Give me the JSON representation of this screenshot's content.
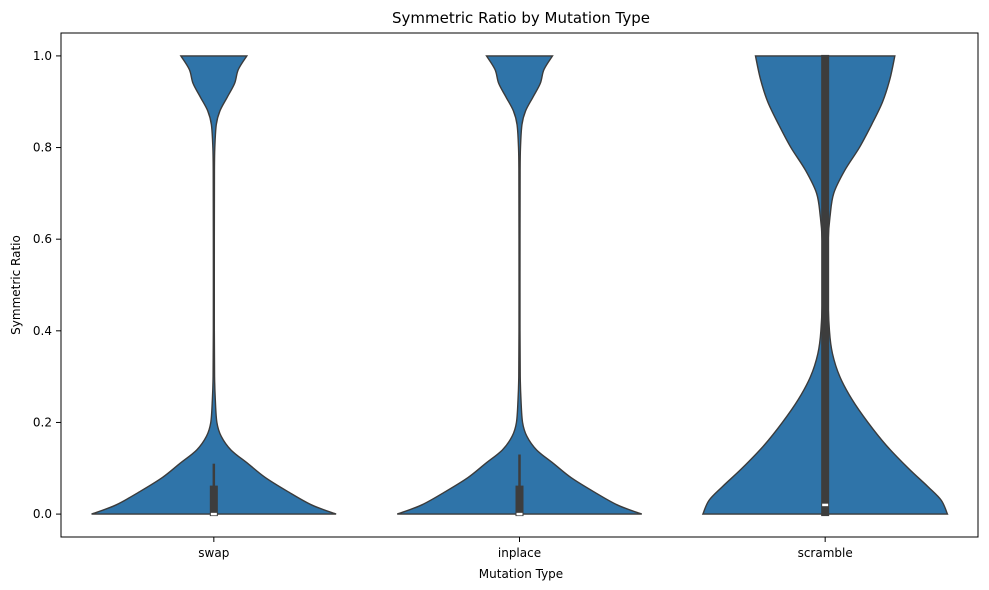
{
  "chart_data": {
    "type": "violin",
    "title": "Symmetric Ratio by Mutation Type",
    "xlabel": "Mutation Type",
    "ylabel": "Symmetric Ratio",
    "ylim": [
      -0.05,
      1.05
    ],
    "yticks": [
      0.0,
      0.2,
      0.4,
      0.6,
      0.8,
      1.0
    ],
    "ytick_labels": [
      "0.0",
      "0.2",
      "0.4",
      "0.6",
      "0.8",
      "1.0"
    ],
    "categories": [
      "swap",
      "inplace",
      "scramble"
    ],
    "grid": false,
    "colors": {
      "violin_fill": "#2f74a9",
      "violin_edge": "#3b3b3b",
      "box": "#3d3d3d",
      "median": "#ffffff"
    },
    "violins": [
      {
        "category": "swap",
        "box": {
          "whisker_low": 0.0,
          "q1": 0.0,
          "median": 0.0,
          "q3": 0.06,
          "whisker_high": 0.11
        },
        "density": [
          [
            0.0,
            1.0
          ],
          [
            0.02,
            0.8
          ],
          [
            0.05,
            0.6
          ],
          [
            0.08,
            0.42
          ],
          [
            0.11,
            0.28
          ],
          [
            0.14,
            0.14
          ],
          [
            0.17,
            0.06
          ],
          [
            0.2,
            0.025
          ],
          [
            0.25,
            0.012
          ],
          [
            0.3,
            0.006
          ],
          [
            0.4,
            0.004
          ],
          [
            0.6,
            0.004
          ],
          [
            0.75,
            0.005
          ],
          [
            0.8,
            0.008
          ],
          [
            0.85,
            0.02
          ],
          [
            0.88,
            0.05
          ],
          [
            0.91,
            0.11
          ],
          [
            0.94,
            0.17
          ],
          [
            0.97,
            0.2
          ],
          [
            1.0,
            0.27
          ]
        ]
      },
      {
        "category": "inplace",
        "box": {
          "whisker_low": 0.0,
          "q1": 0.0,
          "median": 0.0,
          "q3": 0.06,
          "whisker_high": 0.13
        },
        "density": [
          [
            0.0,
            1.0
          ],
          [
            0.02,
            0.8
          ],
          [
            0.05,
            0.6
          ],
          [
            0.08,
            0.42
          ],
          [
            0.11,
            0.28
          ],
          [
            0.14,
            0.14
          ],
          [
            0.17,
            0.06
          ],
          [
            0.2,
            0.025
          ],
          [
            0.25,
            0.012
          ],
          [
            0.3,
            0.006
          ],
          [
            0.4,
            0.004
          ],
          [
            0.6,
            0.004
          ],
          [
            0.75,
            0.005
          ],
          [
            0.8,
            0.008
          ],
          [
            0.85,
            0.02
          ],
          [
            0.88,
            0.05
          ],
          [
            0.91,
            0.11
          ],
          [
            0.94,
            0.17
          ],
          [
            0.97,
            0.2
          ],
          [
            1.0,
            0.27
          ]
        ]
      },
      {
        "category": "scramble",
        "box": {
          "whisker_low": 0.0,
          "q1": 0.0,
          "median": 0.02,
          "q3": 1.0,
          "whisker_high": 1.0
        },
        "density": [
          [
            0.0,
            1.0
          ],
          [
            0.03,
            0.95
          ],
          [
            0.06,
            0.84
          ],
          [
            0.1,
            0.68
          ],
          [
            0.15,
            0.5
          ],
          [
            0.2,
            0.35
          ],
          [
            0.25,
            0.22
          ],
          [
            0.3,
            0.12
          ],
          [
            0.35,
            0.06
          ],
          [
            0.4,
            0.035
          ],
          [
            0.5,
            0.02
          ],
          [
            0.6,
            0.025
          ],
          [
            0.65,
            0.04
          ],
          [
            0.7,
            0.07
          ],
          [
            0.75,
            0.16
          ],
          [
            0.8,
            0.28
          ],
          [
            0.85,
            0.38
          ],
          [
            0.9,
            0.47
          ],
          [
            0.95,
            0.53
          ],
          [
            1.0,
            0.57
          ]
        ]
      }
    ]
  }
}
